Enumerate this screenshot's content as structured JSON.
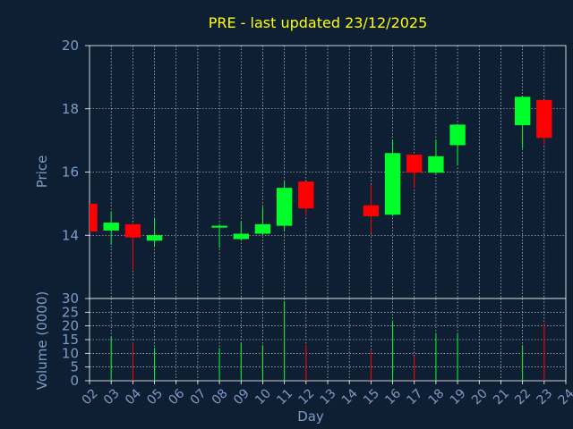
{
  "chart_data": {
    "type": "candlestick",
    "title": "PRE - last updated 23/12/2025",
    "xlabel": "Day",
    "ylabel": "Price",
    "volume_label": "Volume (0000)",
    "price_ylim": [
      12,
      20
    ],
    "price_yticks": [
      14,
      16,
      18,
      20
    ],
    "volume_ylim": [
      0,
      30
    ],
    "volume_yticks": [
      0,
      5,
      10,
      15,
      20,
      25,
      30
    ],
    "x_range": [
      2,
      24
    ],
    "x_ticks": [
      "02",
      "03",
      "04",
      "05",
      "06",
      "07",
      "08",
      "09",
      "10",
      "11",
      "12",
      "13",
      "14",
      "15",
      "16",
      "17",
      "18",
      "19",
      "20",
      "21",
      "22",
      "23",
      "24"
    ],
    "grid": true,
    "candles": [
      {
        "day": 2,
        "open": 15.0,
        "high": 15.0,
        "low": 14.1,
        "close": 14.12,
        "volume": 0
      },
      {
        "day": 3,
        "open": 14.15,
        "high": 14.75,
        "low": 13.7,
        "close": 14.4,
        "volume": 16
      },
      {
        "day": 4,
        "open": 14.35,
        "high": 14.35,
        "low": 12.9,
        "close": 13.93,
        "volume": 14
      },
      {
        "day": 5,
        "open": 13.83,
        "high": 14.52,
        "low": 13.65,
        "close": 14.0,
        "volume": 12
      },
      {
        "day": 8,
        "open": 14.25,
        "high": 14.35,
        "low": 13.6,
        "close": 14.3,
        "volume": 12
      },
      {
        "day": 9,
        "open": 13.88,
        "high": 14.43,
        "low": 13.85,
        "close": 14.05,
        "volume": 14
      },
      {
        "day": 10,
        "open": 14.05,
        "high": 14.9,
        "low": 14.0,
        "close": 14.35,
        "volume": 13
      },
      {
        "day": 11,
        "open": 14.3,
        "high": 15.7,
        "low": 14.15,
        "close": 15.5,
        "volume": 29
      },
      {
        "day": 12,
        "open": 15.7,
        "high": 15.7,
        "low": 14.6,
        "close": 14.85,
        "volume": 13
      },
      {
        "day": 15,
        "open": 14.95,
        "high": 15.6,
        "low": 14.05,
        "close": 14.6,
        "volume": 11
      },
      {
        "day": 16,
        "open": 14.65,
        "high": 17.0,
        "low": 14.6,
        "close": 16.6,
        "volume": 22
      },
      {
        "day": 17,
        "open": 16.55,
        "high": 16.55,
        "low": 15.5,
        "close": 15.98,
        "volume": 9
      },
      {
        "day": 18,
        "open": 15.98,
        "high": 17.0,
        "low": 15.95,
        "close": 16.5,
        "volume": 17
      },
      {
        "day": 19,
        "open": 16.85,
        "high": 17.5,
        "low": 16.2,
        "close": 17.5,
        "volume": 17
      },
      {
        "day": 22,
        "open": 17.48,
        "high": 18.4,
        "low": 16.75,
        "close": 18.38,
        "volume": 13
      },
      {
        "day": 23,
        "open": 18.28,
        "high": 18.28,
        "low": 16.85,
        "close": 17.08,
        "volume": 21
      }
    ]
  },
  "colors": {
    "background": "#0e1f33",
    "plot_bg": "#0e1f33",
    "title": "#ffff00",
    "axis_text": "#7a9cc6",
    "grid": "#ffffff",
    "up": "#00ff2a",
    "down": "#ff0000",
    "frame": "#ffffff"
  }
}
